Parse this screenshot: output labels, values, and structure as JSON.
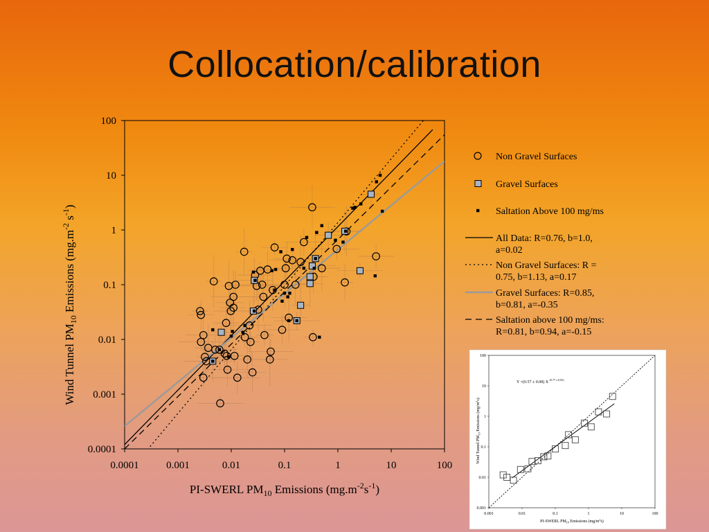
{
  "slide": {
    "title": "Collocation/calibration"
  },
  "chart_data": [
    {
      "type": "scatter",
      "title": "",
      "xlabel": "PI-SWERL PM",
      "xlabel_sub": "10",
      "xlabel_unit": " Emissions (mg.m",
      "xlabel_sup1": "-2",
      "xlabel_mid": "s",
      "xlabel_sup2": "-1",
      "xlabel_end": ")",
      "ylabel": "Wind Tunnel PM",
      "ylabel_sub": "10",
      "ylabel_unit": " Emissions (mg.m",
      "ylabel_sup1": "-2",
      "ylabel_mid": " s",
      "ylabel_sup2": "-1",
      "ylabel_end": ")",
      "x_scale": "log",
      "y_scale": "log",
      "xlim": [
        0.0001,
        100
      ],
      "ylim": [
        0.0001,
        100
      ],
      "x_ticks": [
        "0.0001",
        "0.001",
        "0.01",
        "0.1",
        "1",
        "10",
        "100"
      ],
      "y_ticks": [
        "0.0001",
        "0.001",
        "0.01",
        "0.1",
        "1",
        "10",
        "100"
      ],
      "legend_position": "right",
      "legend": [
        {
          "label": "Non Gravel Surfaces",
          "marker": "circle"
        },
        {
          "label": "Gravel Surfaces",
          "marker": "square"
        },
        {
          "label": "Saltation Above 100 mg/ms",
          "marker": "dot"
        },
        {
          "label_lines": [
            "All Data: R=0.76, b=1.0,",
            "a=0.02"
          ],
          "line": "solid-black"
        },
        {
          "label_lines": [
            "Non Gravel Surfaces: R =",
            "0.75, b=1.13, a=0.17"
          ],
          "line": "dotted-black"
        },
        {
          "label_lines": [
            "Gravel Surfaces: R=0.85,",
            "b=0.81, a=-0.35"
          ],
          "line": "solid-gray"
        },
        {
          "label_lines": [
            "Saltation above 100 mg/ms:",
            "R=0.81, b=0.94, a=-0.15"
          ],
          "line": "dashed-black"
        }
      ],
      "fit_lines": [
        {
          "name": "All Data",
          "style": "solid-black",
          "x": [
            0.0001,
            60
          ],
          "y": [
            0.00012,
            68
          ]
        },
        {
          "name": "Non Gravel Surfaces",
          "style": "dotted-black",
          "x": [
            0.0003,
            40
          ],
          "y": [
            0.00011,
            100
          ]
        },
        {
          "name": "Gravel Surfaces",
          "style": "solid-gray",
          "x": [
            0.0001,
            100
          ],
          "y": [
            0.00026,
            18
          ]
        },
        {
          "name": "Saltation above 100 mg/ms",
          "style": "dashed-black",
          "x": [
            0.0001,
            100
          ],
          "y": [
            0.0001,
            55
          ]
        }
      ],
      "non_gravel": [
        [
          0.0026,
          0.033
        ],
        [
          0.0027,
          0.028
        ],
        [
          0.003,
          0.012
        ],
        [
          0.0027,
          0.009
        ],
        [
          0.0032,
          0.0048
        ],
        [
          0.0037,
          0.007
        ],
        [
          0.003,
          0.002
        ],
        [
          0.0034,
          0.004
        ],
        [
          0.0047,
          0.115
        ],
        [
          0.005,
          0.0065
        ],
        [
          0.006,
          0.0065
        ],
        [
          0.0062,
          0.00068
        ],
        [
          0.0075,
          0.0055
        ],
        [
          0.008,
          0.02
        ],
        [
          0.0082,
          0.005
        ],
        [
          0.0085,
          0.0028
        ],
        [
          0.009,
          0.095
        ],
        [
          0.0095,
          0.047
        ],
        [
          0.0098,
          0.033
        ],
        [
          0.011,
          0.06
        ],
        [
          0.012,
          0.1
        ],
        [
          0.011,
          0.038
        ],
        [
          0.0115,
          0.005
        ],
        [
          0.013,
          0.002
        ],
        [
          0.0175,
          0.4
        ],
        [
          0.018,
          0.011
        ],
        [
          0.02,
          0.0043
        ],
        [
          0.022,
          0.018
        ],
        [
          0.023,
          0.009
        ],
        [
          0.025,
          0.0025
        ],
        [
          0.028,
          0.15
        ],
        [
          0.03,
          0.095
        ],
        [
          0.032,
          0.035
        ],
        [
          0.035,
          0.18
        ],
        [
          0.038,
          0.1
        ],
        [
          0.04,
          0.06
        ],
        [
          0.042,
          0.012
        ],
        [
          0.048,
          0.19
        ],
        [
          0.053,
          0.0043
        ],
        [
          0.055,
          0.006
        ],
        [
          0.06,
          0.08
        ],
        [
          0.065,
          0.48
        ],
        [
          0.09,
          0.015
        ],
        [
          0.1,
          0.1
        ],
        [
          0.105,
          0.2
        ],
        [
          0.11,
          0.3
        ],
        [
          0.12,
          0.025
        ],
        [
          0.14,
          0.28
        ],
        [
          0.16,
          0.1
        ],
        [
          0.2,
          0.26
        ],
        [
          0.23,
          0.6
        ],
        [
          0.33,
          2.6
        ],
        [
          0.34,
          0.011
        ],
        [
          0.35,
          0.14
        ],
        [
          0.5,
          0.2
        ],
        [
          0.95,
          0.45
        ],
        [
          1.35,
          0.11
        ],
        [
          1.45,
          0.94
        ],
        [
          5.2,
          0.33
        ]
      ],
      "gravel": [
        [
          0.0045,
          0.004
        ],
        [
          0.0065,
          0.0135
        ],
        [
          0.026,
          0.033
        ],
        [
          0.027,
          0.12
        ],
        [
          0.17,
          0.022
        ],
        [
          0.2,
          0.042
        ],
        [
          0.3,
          0.105
        ],
        [
          0.3,
          0.14
        ],
        [
          0.33,
          0.22
        ],
        [
          0.38,
          0.3
        ],
        [
          0.66,
          0.8
        ],
        [
          1.35,
          0.95
        ],
        [
          2.6,
          0.18
        ],
        [
          4.2,
          4.5
        ]
      ],
      "saltation": [
        [
          0.0045,
          0.004
        ],
        [
          0.0045,
          0.015
        ],
        [
          0.006,
          0.0065
        ],
        [
          0.009,
          0.0048
        ],
        [
          0.01,
          0.0115
        ],
        [
          0.0105,
          0.014
        ],
        [
          0.0165,
          0.0135
        ],
        [
          0.018,
          0.018
        ],
        [
          0.026,
          0.17
        ],
        [
          0.027,
          0.033
        ],
        [
          0.028,
          0.12
        ],
        [
          0.058,
          0.18
        ],
        [
          0.065,
          0.08
        ],
        [
          0.068,
          0.19
        ],
        [
          0.085,
          0.4
        ],
        [
          0.09,
          0.05
        ],
        [
          0.1,
          0.07
        ],
        [
          0.115,
          0.06
        ],
        [
          0.12,
          0.022
        ],
        [
          0.125,
          0.07
        ],
        [
          0.14,
          0.44
        ],
        [
          0.17,
          0.022
        ],
        [
          0.23,
          0.2
        ],
        [
          0.26,
          0.73
        ],
        [
          0.36,
          0.2
        ],
        [
          0.38,
          0.3
        ],
        [
          0.4,
          0.9
        ],
        [
          0.45,
          0.011
        ],
        [
          0.5,
          1.2
        ],
        [
          0.9,
          0.65
        ],
        [
          1.25,
          0.6
        ],
        [
          1.4,
          0.95
        ],
        [
          1.9,
          2.5
        ],
        [
          2.1,
          2.6
        ],
        [
          2.7,
          3.0
        ],
        [
          5.0,
          0.145
        ],
        [
          5.3,
          7.6
        ],
        [
          6.2,
          10
        ],
        [
          6.8,
          2.2
        ]
      ]
    },
    {
      "type": "scatter",
      "title": "",
      "xlabel": "PI-SWERL PM",
      "xlabel_sub": "10",
      "xlabel_end": " Emissions (mg/m",
      "xlabel_sup": "2",
      "xlabel_tail": "s)",
      "ylabel": "Wind Tunnel PM",
      "ylabel_sub": "10",
      "ylabel_end": " Emissions (mg/m",
      "ylabel_sup": "2",
      "ylabel_tail": "s)",
      "equation": "Y =(0.57 ± 0.08) X",
      "equation_exp": "(0.77 ± 0.05)",
      "x_scale": "log",
      "y_scale": "log",
      "xlim": [
        0.001,
        100
      ],
      "ylim": [
        0.001,
        100
      ],
      "x_ticks": [
        "0.001",
        "0.01",
        "0.1",
        "1",
        "10",
        "100"
      ],
      "y_ticks": [
        "0.001",
        "0.01",
        "0.1",
        "1",
        "10",
        "100"
      ],
      "points": [
        [
          0.0027,
          0.012
        ],
        [
          0.0035,
          0.01
        ],
        [
          0.0055,
          0.008
        ],
        [
          0.009,
          0.018
        ],
        [
          0.015,
          0.019
        ],
        [
          0.02,
          0.033
        ],
        [
          0.03,
          0.035
        ],
        [
          0.045,
          0.047
        ],
        [
          0.06,
          0.05
        ],
        [
          0.1,
          0.085
        ],
        [
          0.2,
          0.11
        ],
        [
          0.25,
          0.25
        ],
        [
          0.4,
          0.17
        ],
        [
          0.75,
          0.6
        ],
        [
          1.2,
          0.45
        ],
        [
          2,
          1.4
        ],
        [
          3.5,
          1.2
        ],
        [
          5.3,
          4.5
        ]
      ],
      "fit_line": {
        "style": "solid-black",
        "x": [
          0.005,
          6
        ],
        "y": [
          0.0095,
          2.6
        ]
      },
      "one_to_one": {
        "style": "dotted-black",
        "x": [
          0.001,
          100
        ],
        "y": [
          0.001,
          100
        ]
      }
    }
  ]
}
